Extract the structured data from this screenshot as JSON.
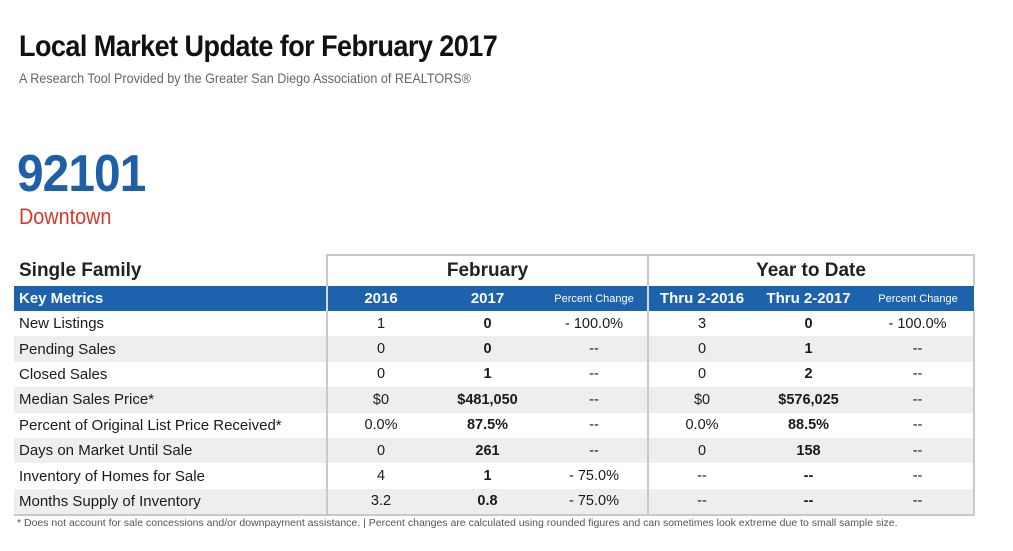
{
  "header": {
    "title": "Local Market Update for February 2017",
    "subtitle": "A Research Tool Provided by the Greater San Diego Association of REALTORS®"
  },
  "location": {
    "zip": "92101",
    "name": "Downtown"
  },
  "table": {
    "category": "Single Family",
    "group_february": "February",
    "group_ytd": "Year to Date",
    "columns": {
      "key_metrics": "Key Metrics",
      "feb_2016": "2016",
      "feb_2017": "2017",
      "feb_pct": "Percent Change",
      "ytd_2016": "Thru 2-2016",
      "ytd_2017": "Thru 2-2017",
      "ytd_pct": "Percent Change"
    },
    "rows": [
      {
        "metric": "New Listings",
        "feb_2016": "1",
        "feb_2017": "0",
        "feb_pct": "- 100.0%",
        "ytd_2016": "3",
        "ytd_2017": "0",
        "ytd_pct": "- 100.0%"
      },
      {
        "metric": "Pending Sales",
        "feb_2016": "0",
        "feb_2017": "0",
        "feb_pct": "--",
        "ytd_2016": "0",
        "ytd_2017": "1",
        "ytd_pct": "--"
      },
      {
        "metric": "Closed Sales",
        "feb_2016": "0",
        "feb_2017": "1",
        "feb_pct": "--",
        "ytd_2016": "0",
        "ytd_2017": "2",
        "ytd_pct": "--"
      },
      {
        "metric": "Median Sales Price*",
        "feb_2016": "$0",
        "feb_2017": "$481,050",
        "feb_pct": "--",
        "ytd_2016": "$0",
        "ytd_2017": "$576,025",
        "ytd_pct": "--"
      },
      {
        "metric": "Percent of Original List Price Received*",
        "feb_2016": "0.0%",
        "feb_2017": "87.5%",
        "feb_pct": "--",
        "ytd_2016": "0.0%",
        "ytd_2017": "88.5%",
        "ytd_pct": "--"
      },
      {
        "metric": "Days on Market Until Sale",
        "feb_2016": "0",
        "feb_2017": "261",
        "feb_pct": "--",
        "ytd_2016": "0",
        "ytd_2017": "158",
        "ytd_pct": "--"
      },
      {
        "metric": "Inventory of Homes for Sale",
        "feb_2016": "4",
        "feb_2017": "1",
        "feb_pct": "- 75.0%",
        "ytd_2016": "--",
        "ytd_2017": "--",
        "ytd_pct": "--"
      },
      {
        "metric": "Months Supply of Inventory",
        "feb_2016": "3.2",
        "feb_2017": "0.8",
        "feb_pct": "- 75.0%",
        "ytd_2016": "--",
        "ytd_2017": "--",
        "ytd_pct": "--"
      }
    ]
  },
  "footnote": "* Does not account for sale concessions and/or downpayment assistance.  |  Percent changes are calculated using rounded figures and can sometimes look extreme due to small sample size.",
  "colors": {
    "header_blue": "#1d62ac",
    "zip_blue": "#1e5fa8",
    "area_red": "#d4392b",
    "row_alt": "#eeeeee"
  }
}
